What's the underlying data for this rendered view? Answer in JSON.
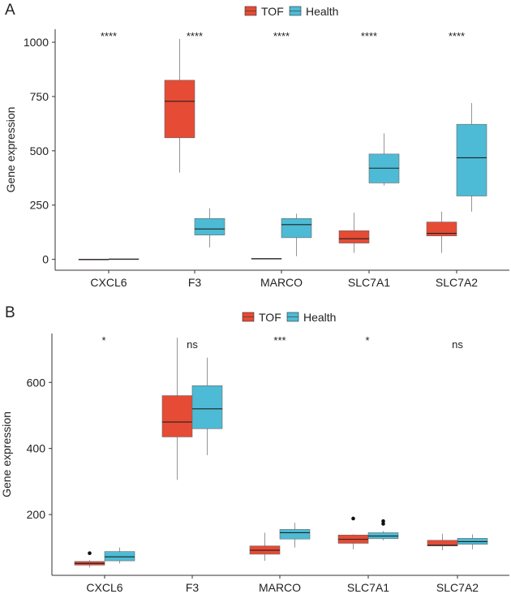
{
  "chart_data": [
    {
      "type": "boxplot",
      "panel": "A",
      "ylabel": "Gene expression",
      "ylim": [
        -50,
        1060
      ],
      "yticks": [
        0,
        250,
        500,
        750,
        1000
      ],
      "legend": [
        {
          "name": "TOF",
          "color": "#E64B35"
        },
        {
          "name": "Health",
          "color": "#4DBBD5"
        }
      ],
      "categories": [
        "CXCL6",
        "F3",
        "MARCO",
        "SLC7A1",
        "SLC7A2"
      ],
      "significance": [
        "****",
        "****",
        "****",
        "****",
        "****"
      ],
      "series": [
        {
          "name": "TOF",
          "boxes": [
            {
              "min": 0,
              "q1": 0,
              "median": 0,
              "q3": 0,
              "max": 0,
              "outliers": []
            },
            {
              "min": 400,
              "q1": 560,
              "median": 728,
              "q3": 825,
              "max": 1015,
              "outliers": []
            },
            {
              "min": 2,
              "q1": 2,
              "median": 3,
              "q3": 4,
              "max": 5,
              "outliers": []
            },
            {
              "min": 30,
              "q1": 75,
              "median": 95,
              "q3": 132,
              "max": 215,
              "outliers": []
            },
            {
              "min": 30,
              "q1": 108,
              "median": 120,
              "q3": 172,
              "max": 220,
              "outliers": []
            }
          ]
        },
        {
          "name": "Health",
          "boxes": [
            {
              "min": 0,
              "q1": 0,
              "median": 1,
              "q3": 2,
              "max": 2,
              "outliers": []
            },
            {
              "min": 55,
              "q1": 112,
              "median": 140,
              "q3": 188,
              "max": 235,
              "outliers": []
            },
            {
              "min": 15,
              "q1": 100,
              "median": 160,
              "q3": 188,
              "max": 210,
              "outliers": []
            },
            {
              "min": 340,
              "q1": 352,
              "median": 420,
              "q3": 485,
              "max": 580,
              "outliers": []
            },
            {
              "min": 220,
              "q1": 292,
              "median": 468,
              "q3": 622,
              "max": 720,
              "outliers": []
            }
          ]
        }
      ]
    },
    {
      "type": "boxplot",
      "panel": "B",
      "ylabel": "Gene expression",
      "ylim": [
        16,
        748
      ],
      "yticks": [
        200,
        400,
        600
      ],
      "legend": [
        {
          "name": "TOF",
          "color": "#E64B35"
        },
        {
          "name": "Health",
          "color": "#4DBBD5"
        }
      ],
      "categories": [
        "CXCL6",
        "F3",
        "MARCO",
        "SLC7A1",
        "SLC7A2"
      ],
      "significance": [
        "*",
        "ns",
        "***",
        "*",
        "ns"
      ],
      "series": [
        {
          "name": "TOF",
          "boxes": [
            {
              "min": 40,
              "q1": 47,
              "median": 52,
              "q3": 58,
              "max": 62,
              "outliers": [
                83
              ]
            },
            {
              "min": 305,
              "q1": 435,
              "median": 480,
              "q3": 560,
              "max": 735,
              "outliers": []
            },
            {
              "min": 60,
              "q1": 80,
              "median": 92,
              "q3": 105,
              "max": 145,
              "outliers": []
            },
            {
              "min": 95,
              "q1": 113,
              "median": 125,
              "q3": 138,
              "max": 140,
              "outliers": [
                188
              ]
            },
            {
              "min": 92,
              "q1": 105,
              "median": 107,
              "q3": 122,
              "max": 142,
              "outliers": []
            }
          ]
        },
        {
          "name": "Health",
          "boxes": [
            {
              "min": 52,
              "q1": 60,
              "median": 72,
              "q3": 88,
              "max": 100,
              "outliers": []
            },
            {
              "min": 380,
              "q1": 460,
              "median": 520,
              "q3": 590,
              "max": 675,
              "outliers": []
            },
            {
              "min": 100,
              "q1": 126,
              "median": 145,
              "q3": 155,
              "max": 175,
              "outliers": []
            },
            {
              "min": 122,
              "q1": 127,
              "median": 135,
              "q3": 145,
              "max": 150,
              "outliers": [
                172,
                180
              ]
            },
            {
              "min": 95,
              "q1": 110,
              "median": 118,
              "q3": 128,
              "max": 140,
              "outliers": []
            }
          ]
        }
      ]
    }
  ]
}
